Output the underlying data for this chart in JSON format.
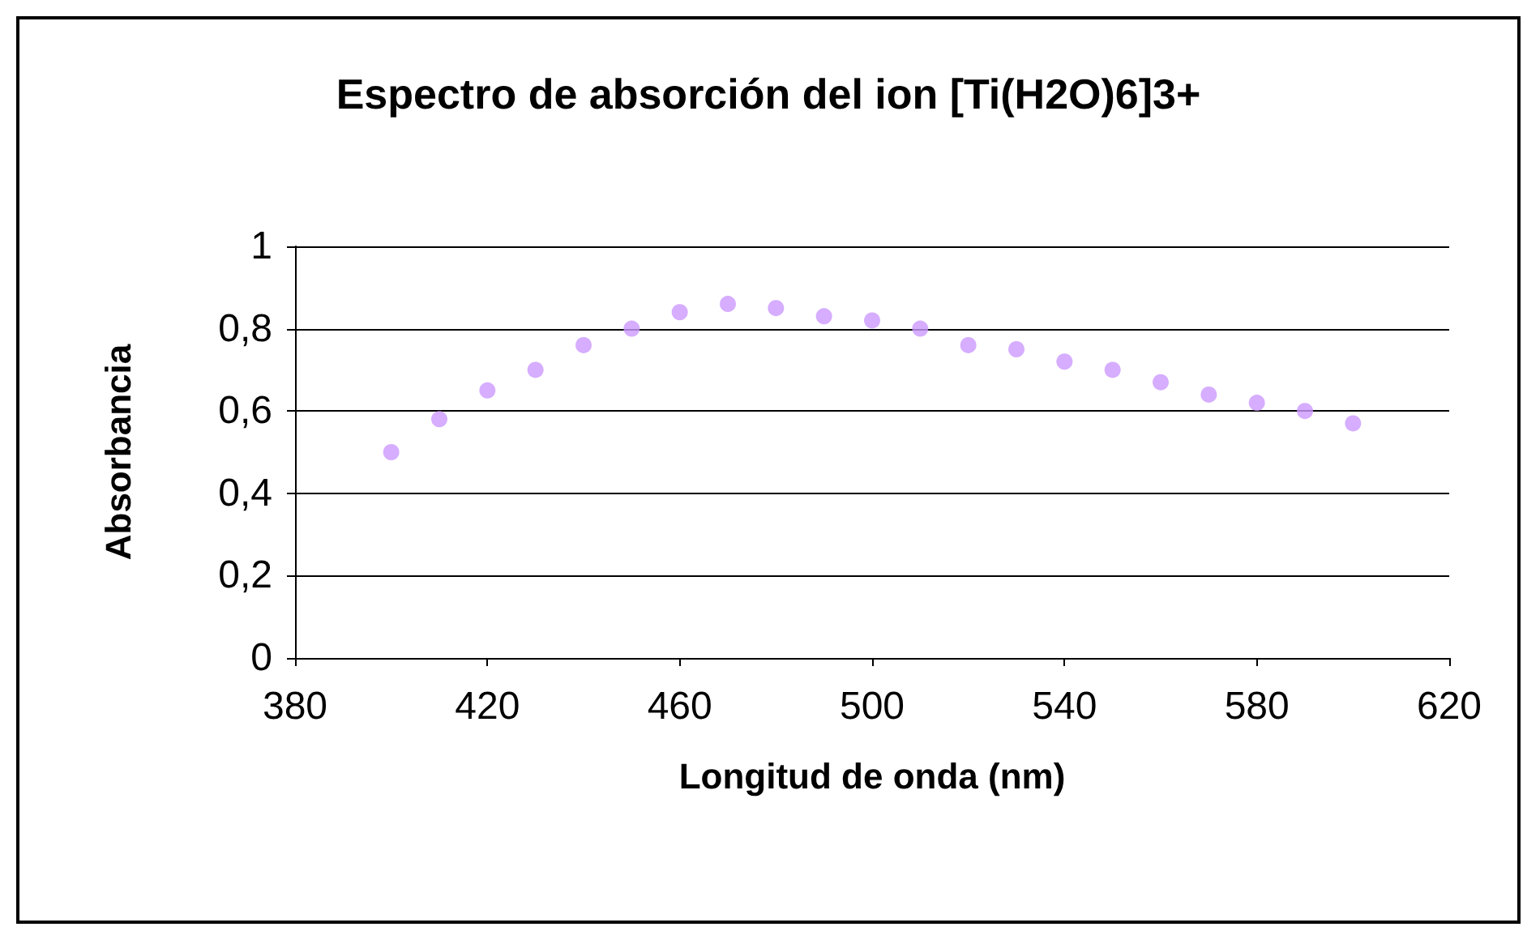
{
  "chart_data": {
    "type": "scatter",
    "title": "Espectro de absorción del ion [Ti(H2O)6]3+",
    "xlabel": "Longitud de onda (nm)",
    "ylabel": "Absorbancia",
    "x": [
      400,
      410,
      420,
      430,
      440,
      450,
      460,
      470,
      480,
      490,
      500,
      510,
      520,
      530,
      540,
      550,
      560,
      570,
      580,
      590,
      600
    ],
    "series": [
      {
        "color": "#cc99ff",
        "values": [
          0.5,
          0.58,
          0.65,
          0.7,
          0.76,
          0.8,
          0.84,
          0.86,
          0.85,
          0.83,
          0.82,
          0.8,
          0.76,
          0.75,
          0.72,
          0.7,
          0.67,
          0.64,
          0.62,
          0.6,
          0.57
        ]
      }
    ],
    "xlim": [
      380,
      620
    ],
    "xticks": [
      380,
      420,
      460,
      500,
      540,
      580,
      620
    ],
    "ylim": [
      0,
      1
    ],
    "yticks": [
      0,
      {
        "value": 0.2,
        "label": "0,2"
      },
      {
        "value": 0.4,
        "label": "0,4"
      },
      {
        "value": 0.6,
        "label": "0,6"
      },
      {
        "value": 0.8,
        "label": "0,8"
      },
      1
    ],
    "grid": "y",
    "marker": "circle"
  }
}
